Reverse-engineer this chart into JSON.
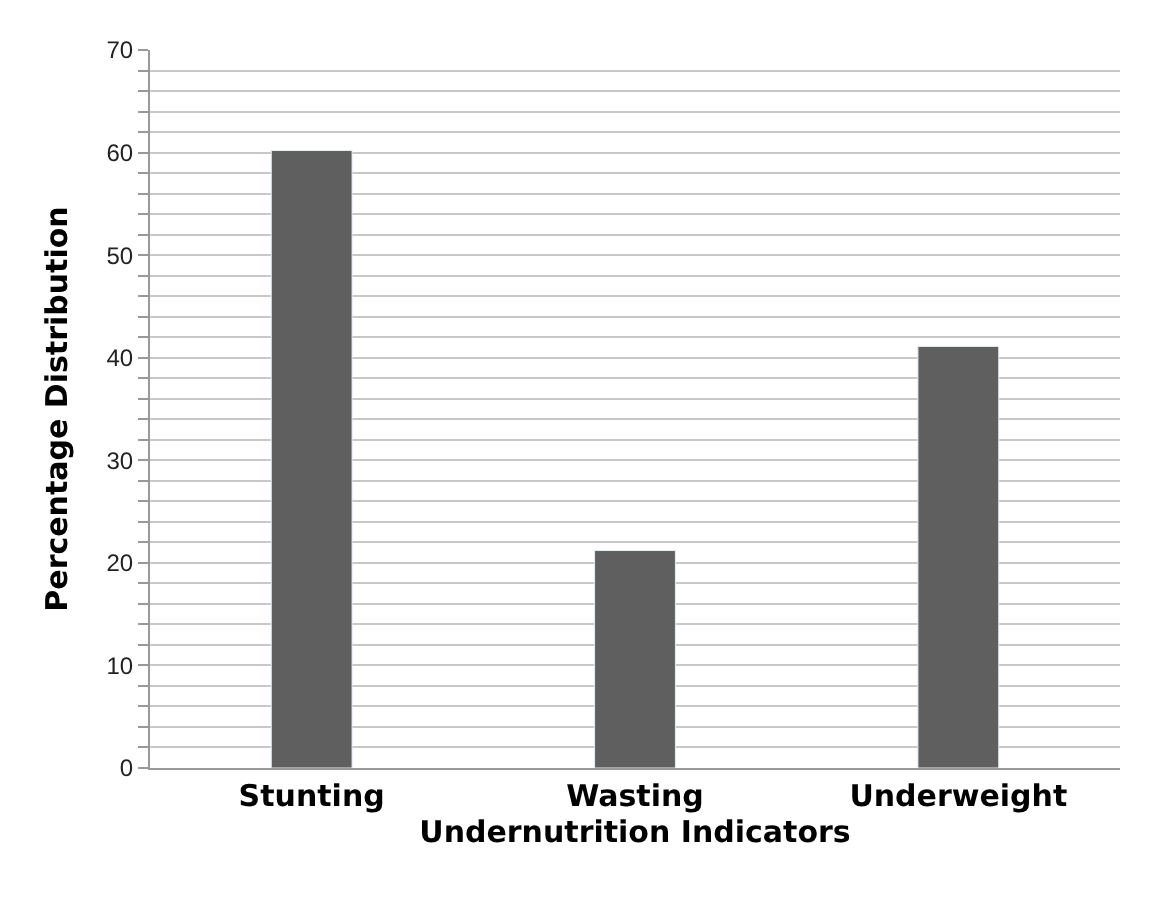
{
  "chart_data": {
    "type": "bar",
    "xlabel": "Undernutrition Indicators",
    "ylabel": "Percentage Distribution",
    "categories": [
      "Stunting",
      "Wasting",
      "Underweight"
    ],
    "values": [
      60.2,
      21.2,
      41.1
    ],
    "color": "#5f5f5f",
    "ylim": [
      0,
      70
    ],
    "yticks": [
      0,
      {
        "value": 2,
        "label": null
      },
      {
        "value": 4,
        "label": null
      },
      {
        "value": 6,
        "label": null
      },
      {
        "value": 8,
        "label": null
      },
      10,
      {
        "value": 12,
        "label": null
      },
      {
        "value": 14,
        "label": null
      },
      {
        "value": 16,
        "label": null
      },
      {
        "value": 18,
        "label": null
      },
      20,
      {
        "value": 22,
        "label": null
      },
      {
        "value": 24,
        "label": null
      },
      {
        "value": 26,
        "label": null
      },
      {
        "value": 28,
        "label": null
      },
      30,
      {
        "value": 32,
        "label": null
      },
      {
        "value": 34,
        "label": null
      },
      {
        "value": 36,
        "label": null
      },
      {
        "value": 38,
        "label": null
      },
      40,
      {
        "value": 42,
        "label": null
      },
      {
        "value": 44,
        "label": null
      },
      {
        "value": 46,
        "label": null
      },
      {
        "value": 48,
        "label": null
      },
      50,
      {
        "value": 52,
        "label": null
      },
      {
        "value": 54,
        "label": null
      },
      {
        "value": 56,
        "label": null
      },
      {
        "value": 58,
        "label": null
      },
      60,
      {
        "value": 62,
        "label": null
      },
      {
        "value": 64,
        "label": null
      },
      {
        "value": 66,
        "label": null
      },
      {
        "value": 68,
        "label": null
      },
      70
    ],
    "grid": "y"
  }
}
